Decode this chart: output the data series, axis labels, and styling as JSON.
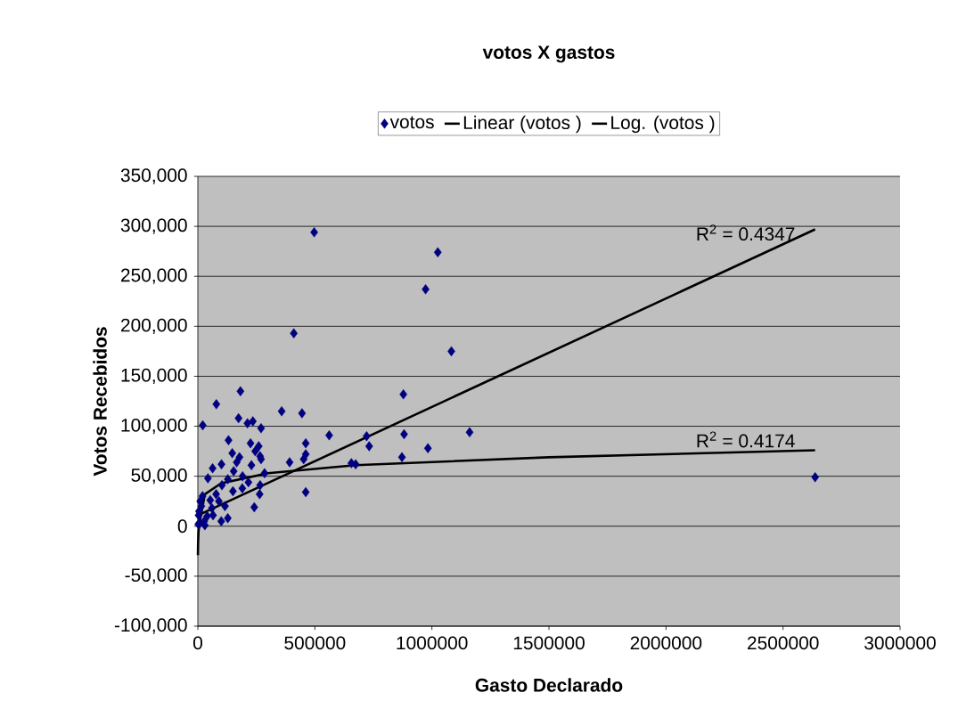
{
  "chart_data": {
    "type": "scatter",
    "title": "votos X gastos",
    "xlabel": "Gasto Declarado",
    "ylabel": "Votos Recebidos",
    "xlim": [
      0,
      3000000
    ],
    "xticks": [
      0,
      500000,
      1000000,
      1500000,
      2000000,
      2500000,
      3000000
    ],
    "ylim": [
      -100000,
      350000
    ],
    "yticks": [
      {
        "value": -100000,
        "label": "-100,000"
      },
      {
        "value": -50000,
        "label": "-50,000"
      },
      {
        "value": 0,
        "label": "0"
      },
      {
        "value": 50000,
        "label": "50,000"
      },
      {
        "value": 100000,
        "label": "100,000"
      },
      {
        "value": 150000,
        "label": "150,000"
      },
      {
        "value": 200000,
        "label": "200,000"
      },
      {
        "value": 250000,
        "label": "250,000"
      },
      {
        "value": 300000,
        "label": "300,000"
      },
      {
        "value": 350000,
        "label": "350,000"
      }
    ],
    "grid": "y",
    "legend": "top",
    "series": [
      {
        "name": "votos",
        "color": "#000080",
        "marker": "diamond",
        "x": [
          497000,
          1025000,
          973000,
          410000,
          1083000,
          182000,
          79000,
          878000,
          721000,
          732000,
          881000,
          872000,
          983000,
          1161000,
          2637000,
          674000,
          21000,
          174000,
          212000,
          235000,
          270000,
          358000,
          445000,
          561000,
          461000,
          461000,
          452000,
          392000,
          656000,
          461000,
          131000,
          225000,
          260000,
          147000,
          178000,
          245000,
          266000,
          270000,
          101000,
          63000,
          43000,
          229000,
          285000,
          191000,
          216000,
          266000,
          264000,
          241000,
          166000,
          153000,
          128000,
          103000,
          78000,
          53000,
          15000,
          3000,
          65000,
          116000,
          128000,
          27000,
          2000,
          5000,
          10000,
          20000,
          40000,
          90000,
          60000,
          150000,
          30000,
          100000,
          190000,
          8000
        ],
        "values": [
          294000,
          274000,
          237000,
          193000,
          175000,
          135000,
          122000,
          132000,
          90000,
          80000,
          92000,
          69000,
          78000,
          94000,
          49000,
          62000,
          101000,
          108000,
          103000,
          105000,
          98000,
          115000,
          113000,
          91000,
          83000,
          72000,
          67000,
          64000,
          63000,
          34000,
          86000,
          83000,
          80000,
          73000,
          69000,
          75000,
          70000,
          67000,
          62000,
          58000,
          48000,
          61000,
          53000,
          50000,
          44000,
          41000,
          32000,
          19000,
          64000,
          55000,
          47000,
          41000,
          32000,
          26000,
          20000,
          11000,
          11000,
          20000,
          8000,
          5000,
          2000,
          15000,
          25000,
          30000,
          10000,
          25000,
          18000,
          35000,
          1000,
          5000,
          38000,
          3000
        ]
      },
      {
        "name": "Linear (votos )",
        "type": "line",
        "color": "#000000",
        "marker": "none",
        "x": [
          2000,
          2637000
        ],
        "values": [
          11000,
          297000
        ]
      },
      {
        "name": "Log. (votos )",
        "type": "line",
        "color": "#000000",
        "marker": "none",
        "x": [
          300,
          1000,
          3000,
          10000,
          30000,
          100000,
          300000,
          674000,
          1500000,
          2637000
        ],
        "values": [
          -29000,
          -17000,
          -5000,
          7000,
          32000,
          43000,
          53000,
          61000,
          69000,
          76000
        ]
      }
    ],
    "annotations": [
      "R$^{2}$ = 0.4347",
      "R$^{2}$ = 0.4174"
    ]
  }
}
